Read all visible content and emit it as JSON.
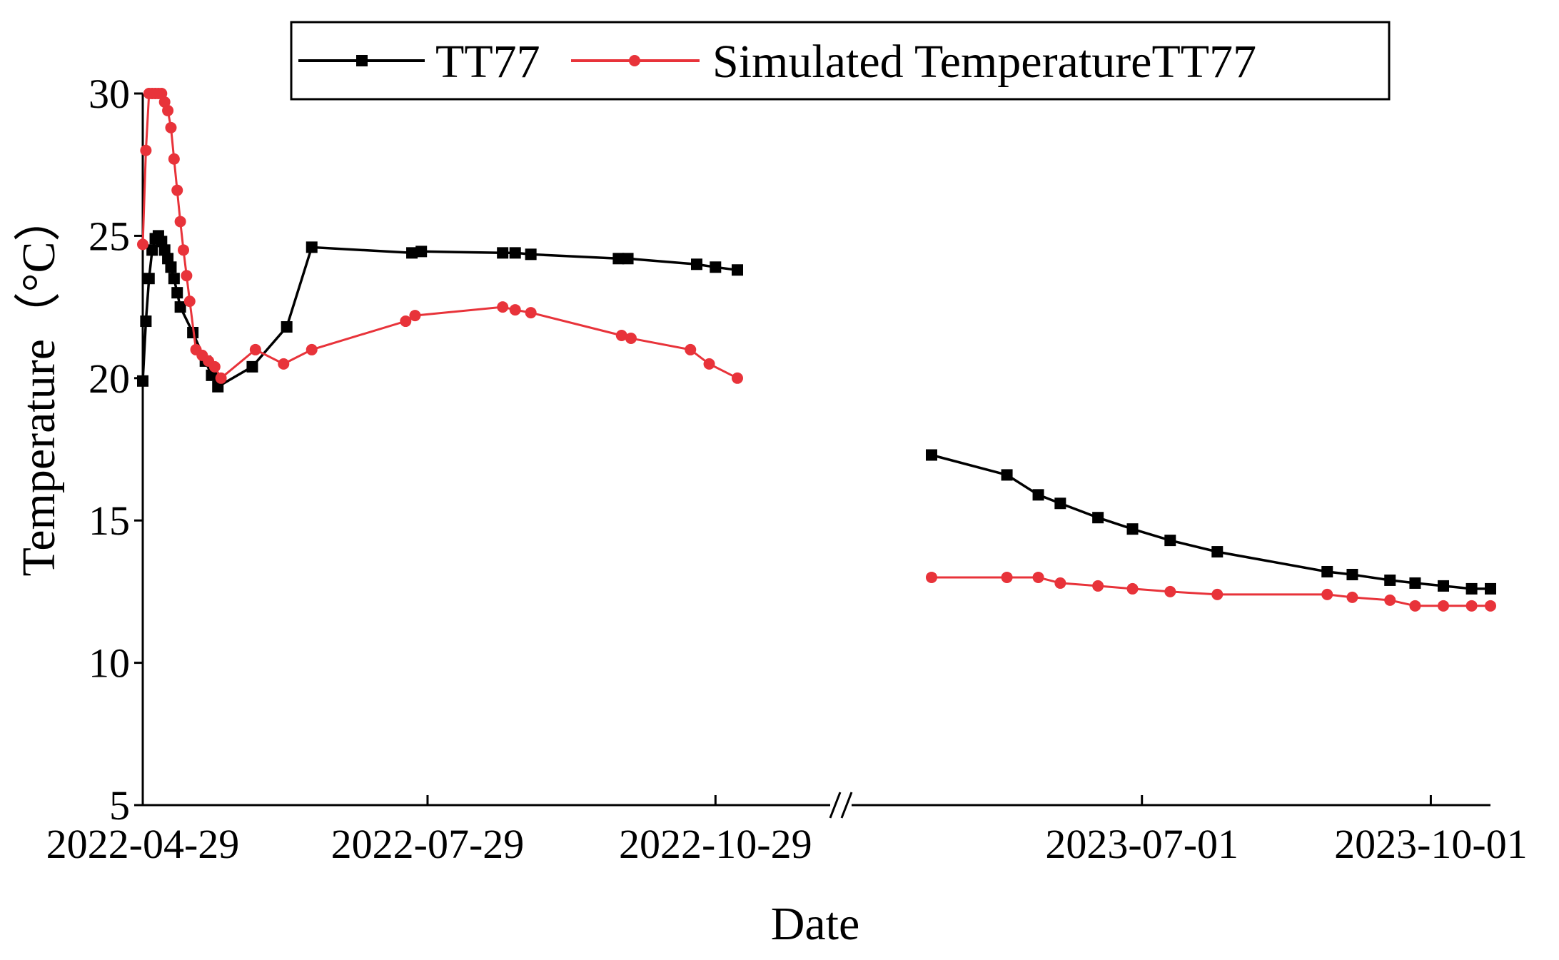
{
  "chart_data": {
    "type": "line",
    "title": "",
    "xlabel": "Date",
    "ylabel": "Temperature（°C）",
    "ylim": [
      5,
      30
    ],
    "yticks": [
      "5",
      "10",
      "15",
      "20",
      "25",
      "30"
    ],
    "x_break": "2022-11-05 to 2023-04-25",
    "x_segments": [
      {
        "start": "2022-04-29",
        "end": "2022-11-05",
        "ticks": [
          "2022-04-29",
          "2022-07-29",
          "2022-10-29"
        ]
      },
      {
        "start": "2023-04-25",
        "end": "2023-10-20",
        "ticks": [
          "2023-07-01",
          "2023-10-01"
        ]
      }
    ],
    "legend": [
      "TT77",
      "Simulated TemperatureTT77"
    ],
    "legend_position": "top",
    "colors": {
      "TT77": "#000000",
      "Simulated TemperatureTT77": "#e8333a"
    },
    "series": [
      {
        "name": "TT77",
        "marker": "square",
        "points": [
          [
            "2022-04-29",
            19.9
          ],
          [
            "2022-04-30",
            22.0
          ],
          [
            "2022-05-01",
            23.5
          ],
          [
            "2022-05-02",
            24.5
          ],
          [
            "2022-05-03",
            24.9
          ],
          [
            "2022-05-04",
            25.0
          ],
          [
            "2022-05-05",
            24.8
          ],
          [
            "2022-05-06",
            24.5
          ],
          [
            "2022-05-07",
            24.2
          ],
          [
            "2022-05-08",
            23.9
          ],
          [
            "2022-05-09",
            23.5
          ],
          [
            "2022-05-10",
            23.0
          ],
          [
            "2022-05-11",
            22.5
          ],
          [
            "2022-05-15",
            21.6
          ],
          [
            "2022-05-19",
            20.6
          ],
          [
            "2022-05-21",
            20.1
          ],
          [
            "2022-05-23",
            19.7
          ],
          [
            "2022-06-03",
            20.4
          ],
          [
            "2022-06-14",
            21.8
          ],
          [
            "2022-06-22",
            24.6
          ],
          [
            "2022-07-24",
            24.4
          ],
          [
            "2022-07-27",
            24.45
          ],
          [
            "2022-08-22",
            24.4
          ],
          [
            "2022-08-26",
            24.4
          ],
          [
            "2022-08-31",
            24.35
          ],
          [
            "2022-09-28",
            24.2
          ],
          [
            "2022-10-01",
            24.2
          ],
          [
            "2022-10-23",
            24.0
          ],
          [
            "2022-10-29",
            23.9
          ],
          [
            "2022-11-05",
            23.8
          ],
          [
            "2023-04-25",
            17.3
          ],
          [
            "2023-05-19",
            16.6
          ],
          [
            "2023-05-29",
            15.9
          ],
          [
            "2023-06-05",
            15.6
          ],
          [
            "2023-06-17",
            15.1
          ],
          [
            "2023-06-28",
            14.7
          ],
          [
            "2023-07-10",
            14.3
          ],
          [
            "2023-07-25",
            13.9
          ],
          [
            "2023-08-29",
            13.2
          ],
          [
            "2023-09-06",
            13.1
          ],
          [
            "2023-09-18",
            12.9
          ],
          [
            "2023-09-26",
            12.8
          ],
          [
            "2023-10-05",
            12.7
          ],
          [
            "2023-10-14",
            12.6
          ],
          [
            "2023-10-20",
            12.6
          ]
        ]
      },
      {
        "name": "Simulated TemperatureTT77",
        "marker": "circle",
        "points": [
          [
            "2022-04-29",
            24.7
          ],
          [
            "2022-04-30",
            28.0
          ],
          [
            "2022-05-01",
            30.0
          ],
          [
            "2022-05-02",
            30.0
          ],
          [
            "2022-05-03",
            30.0
          ],
          [
            "2022-05-04",
            30.0
          ],
          [
            "2022-05-05",
            30.0
          ],
          [
            "2022-05-06",
            29.7
          ],
          [
            "2022-05-07",
            29.4
          ],
          [
            "2022-05-08",
            28.8
          ],
          [
            "2022-05-09",
            27.7
          ],
          [
            "2022-05-10",
            26.6
          ],
          [
            "2022-05-11",
            25.5
          ],
          [
            "2022-05-12",
            24.5
          ],
          [
            "2022-05-13",
            23.6
          ],
          [
            "2022-05-14",
            22.7
          ],
          [
            "2022-05-16",
            21.0
          ],
          [
            "2022-05-18",
            20.8
          ],
          [
            "2022-05-20",
            20.6
          ],
          [
            "2022-05-22",
            20.4
          ],
          [
            "2022-05-24",
            20.0
          ],
          [
            "2022-06-04",
            21.0
          ],
          [
            "2022-06-13",
            20.5
          ],
          [
            "2022-06-22",
            21.0
          ],
          [
            "2022-07-22",
            22.0
          ],
          [
            "2022-07-25",
            22.2
          ],
          [
            "2022-08-22",
            22.5
          ],
          [
            "2022-08-26",
            22.4
          ],
          [
            "2022-08-31",
            22.3
          ],
          [
            "2022-09-29",
            21.5
          ],
          [
            "2022-10-02",
            21.4
          ],
          [
            "2022-10-21",
            21.0
          ],
          [
            "2022-10-27",
            20.5
          ],
          [
            "2022-11-05",
            20.0
          ],
          [
            "2023-04-25",
            13.0
          ],
          [
            "2023-05-19",
            13.0
          ],
          [
            "2023-05-29",
            13.0
          ],
          [
            "2023-06-05",
            12.8
          ],
          [
            "2023-06-17",
            12.7
          ],
          [
            "2023-06-28",
            12.6
          ],
          [
            "2023-07-10",
            12.5
          ],
          [
            "2023-07-25",
            12.4
          ],
          [
            "2023-08-29",
            12.4
          ],
          [
            "2023-09-06",
            12.3
          ],
          [
            "2023-09-18",
            12.2
          ],
          [
            "2023-09-26",
            12.0
          ],
          [
            "2023-10-05",
            12.0
          ],
          [
            "2023-10-14",
            12.0
          ],
          [
            "2023-10-20",
            12.0
          ]
        ]
      }
    ]
  }
}
